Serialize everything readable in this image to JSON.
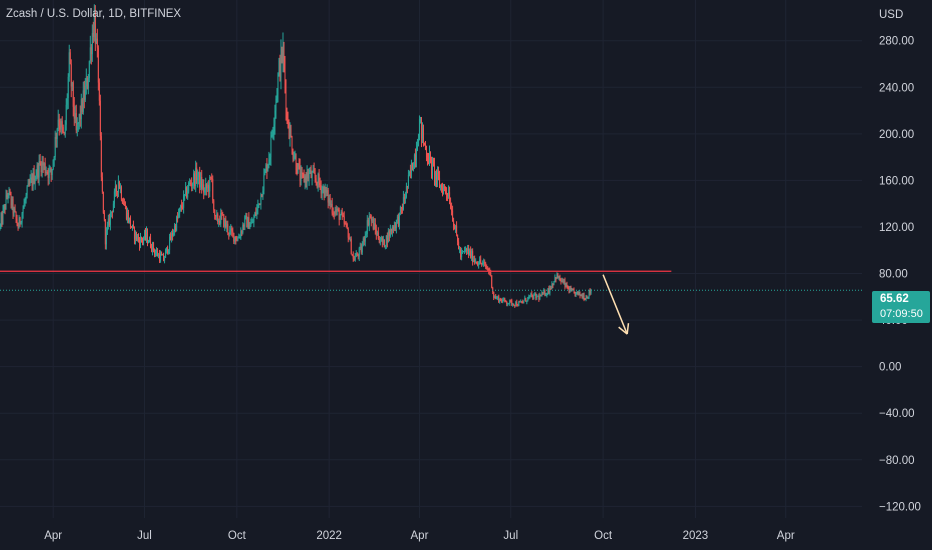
{
  "chart_data": {
    "type": "candlestick",
    "title": "Zcash / U.S. Dollar, 1D, BITFINEX",
    "y_axis": {
      "unit_label": "USD",
      "range": [
        -130,
        315
      ],
      "ticks": [
        "280.00",
        "240.00",
        "200.00",
        "160.00",
        "120.00",
        "80.00",
        "40.00",
        "0.00",
        "−40.00",
        "−80.00",
        "−120.00"
      ],
      "tick_values": [
        280,
        240,
        200,
        160,
        120,
        80,
        40,
        0,
        -40,
        -80,
        -120
      ]
    },
    "x_axis": {
      "ticks": [
        "Apr",
        "Jul",
        "Oct",
        "2022",
        "Apr",
        "Jul",
        "Oct",
        "2023",
        "Apr"
      ],
      "tick_dates": [
        "2021-04-01",
        "2021-07-01",
        "2021-10-01",
        "2022-01-01",
        "2022-04-01",
        "2022-07-01",
        "2022-10-01",
        "2023-01-01",
        "2023-04-01"
      ],
      "range": [
        "2021-02-07",
        "2023-06-16"
      ]
    },
    "price_path": [
      [
        "2021-02-07",
        120
      ],
      [
        "2021-02-15",
        150
      ],
      [
        "2021-02-25",
        120
      ],
      [
        "2021-03-08",
        155
      ],
      [
        "2021-03-20",
        175
      ],
      [
        "2021-03-30",
        165
      ],
      [
        "2021-04-06",
        215
      ],
      [
        "2021-04-12",
        195
      ],
      [
        "2021-04-17",
        260
      ],
      [
        "2021-04-24",
        200
      ],
      [
        "2021-04-30",
        225
      ],
      [
        "2021-05-05",
        245
      ],
      [
        "2021-05-09",
        280
      ],
      [
        "2021-05-12",
        300
      ],
      [
        "2021-05-16",
        250
      ],
      [
        "2021-05-19",
        160
      ],
      [
        "2021-05-23",
        110
      ],
      [
        "2021-05-28",
        130
      ],
      [
        "2021-06-05",
        160
      ],
      [
        "2021-06-12",
        135
      ],
      [
        "2021-06-20",
        115
      ],
      [
        "2021-06-26",
        108
      ],
      [
        "2021-07-03",
        112
      ],
      [
        "2021-07-12",
        98
      ],
      [
        "2021-07-20",
        92
      ],
      [
        "2021-07-28",
        112
      ],
      [
        "2021-08-06",
        135
      ],
      [
        "2021-08-14",
        155
      ],
      [
        "2021-08-22",
        165
      ],
      [
        "2021-08-30",
        150
      ],
      [
        "2021-09-06",
        160
      ],
      [
        "2021-09-09",
        125
      ],
      [
        "2021-09-16",
        128
      ],
      [
        "2021-09-24",
        115
      ],
      [
        "2021-10-02",
        110
      ],
      [
        "2021-10-09",
        125
      ],
      [
        "2021-10-16",
        122
      ],
      [
        "2021-10-23",
        140
      ],
      [
        "2021-10-30",
        170
      ],
      [
        "2021-11-03",
        185
      ],
      [
        "2021-11-08",
        225
      ],
      [
        "2021-11-12",
        255
      ],
      [
        "2021-11-16",
        270
      ],
      [
        "2021-11-20",
        215
      ],
      [
        "2021-11-26",
        185
      ],
      [
        "2021-12-04",
        160
      ],
      [
        "2021-12-12",
        165
      ],
      [
        "2021-12-20",
        160
      ],
      [
        "2021-12-28",
        150
      ],
      [
        "2022-01-05",
        135
      ],
      [
        "2022-01-12",
        130
      ],
      [
        "2022-01-20",
        115
      ],
      [
        "2022-01-25",
        92
      ],
      [
        "2022-02-02",
        100
      ],
      [
        "2022-02-10",
        130
      ],
      [
        "2022-02-17",
        115
      ],
      [
        "2022-02-24",
        105
      ],
      [
        "2022-03-04",
        118
      ],
      [
        "2022-03-12",
        128
      ],
      [
        "2022-03-20",
        155
      ],
      [
        "2022-03-28",
        185
      ],
      [
        "2022-04-01",
        210
      ],
      [
        "2022-04-06",
        190
      ],
      [
        "2022-04-14",
        170
      ],
      [
        "2022-04-22",
        155
      ],
      [
        "2022-04-30",
        150
      ],
      [
        "2022-05-06",
        120
      ],
      [
        "2022-05-12",
        95
      ],
      [
        "2022-05-18",
        100
      ],
      [
        "2022-05-26",
        92
      ],
      [
        "2022-06-03",
        88
      ],
      [
        "2022-06-10",
        82
      ],
      [
        "2022-06-14",
        60
      ],
      [
        "2022-06-22",
        57
      ],
      [
        "2022-06-30",
        55
      ],
      [
        "2022-07-10",
        54
      ],
      [
        "2022-07-20",
        60
      ],
      [
        "2022-07-30",
        60
      ],
      [
        "2022-08-08",
        66
      ],
      [
        "2022-08-15",
        78
      ],
      [
        "2022-08-22",
        72
      ],
      [
        "2022-08-30",
        64
      ],
      [
        "2022-09-07",
        62
      ],
      [
        "2022-09-14",
        60
      ],
      [
        "2022-09-19",
        65.62
      ]
    ],
    "horizontal_lines": [
      {
        "value": 82,
        "from": "2021-02-07",
        "to": "2022-12-08",
        "color": "#f23645"
      }
    ],
    "last_price_line": {
      "value": 65.62
    },
    "arrow": {
      "from_date": "2022-10-01",
      "from_value": 79,
      "to_date": "2022-10-25",
      "to_value": 28,
      "color": "#ffe0b2"
    },
    "last_price": "65.62",
    "countdown": "07:09:50",
    "colors": {
      "up": "#26a69a",
      "down": "#ef5350",
      "background": "#161a25",
      "grid": "#1f2433",
      "text": "#d1d4dc"
    }
  }
}
